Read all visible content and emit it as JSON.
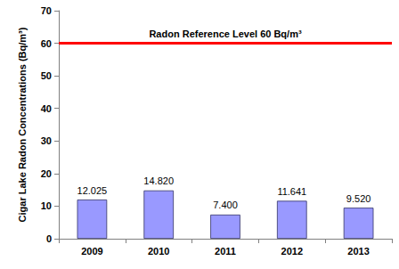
{
  "chart_data": {
    "type": "bar",
    "categories": [
      "2009",
      "2010",
      "2011",
      "2012",
      "2013"
    ],
    "values": [
      12.025,
      14.82,
      7.4,
      11.641,
      9.52
    ],
    "value_labels": [
      "12.025",
      "14.820",
      "7.400",
      "11.641",
      "9.520"
    ],
    "y_label": "Cigar Lake Radon Concentrations (Bq/m³)",
    "reference_line": {
      "value": 60,
      "label": "Radon Reference Level 60 Bq/m³"
    },
    "color": "#9999ff",
    "ylim": [
      0,
      70
    ],
    "yticks": [
      0,
      10,
      20,
      30,
      40,
      50,
      60,
      70
    ],
    "grid": false,
    "data_labels": true
  }
}
